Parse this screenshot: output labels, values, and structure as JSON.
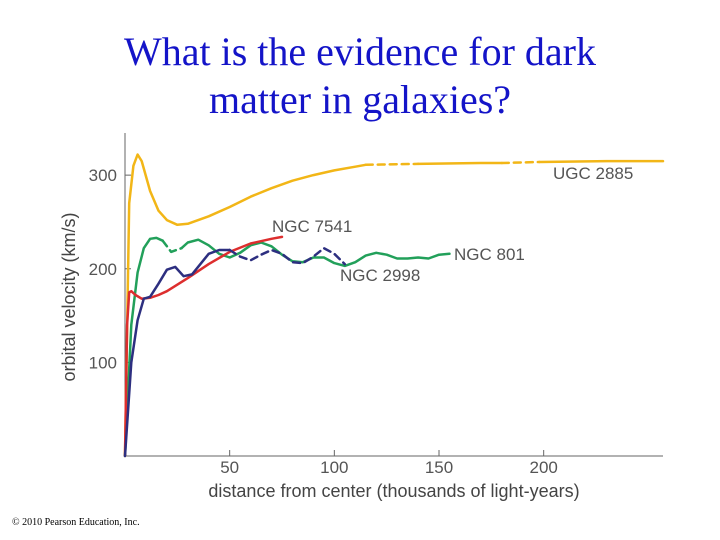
{
  "slide": {
    "title_line1": "What is the evidence for dark",
    "title_line2": "matter in galaxies?",
    "copyright": "© 2010 Pearson Education, Inc."
  },
  "chart_data": {
    "type": "line",
    "title": "",
    "xlabel": "distance from center (thousands of light-years)",
    "ylabel": "orbital velocity (km/s)",
    "xlim": [
      0,
      257
    ],
    "ylim": [
      0,
      345
    ],
    "xticks": [
      50,
      100,
      150,
      200
    ],
    "yticks": [
      100,
      200,
      300
    ],
    "grid": false,
    "legend": "labels placed beside each curve",
    "series": [
      {
        "name": "UGC 2885",
        "color": "#f2b617",
        "x": [
          0,
          2,
          4,
          6,
          8,
          12,
          16,
          20,
          25,
          30,
          40,
          50,
          60,
          70,
          80,
          90,
          100,
          110,
          115
        ],
        "y": [
          0,
          270,
          310,
          322,
          315,
          283,
          262,
          252,
          247,
          248,
          256,
          266,
          277,
          286,
          294,
          300,
          305,
          309,
          311
        ],
        "dashed_x": [
          115,
          140
        ],
        "dashed_y": [
          311,
          312
        ],
        "x2": [
          140,
          170,
          180
        ],
        "y2": [
          312,
          313,
          313
        ],
        "dashed2_x": [
          180,
          198
        ],
        "dashed2_y": [
          313,
          314
        ],
        "x3": [
          198,
          230,
          257
        ],
        "y3": [
          314,
          315,
          315
        ]
      },
      {
        "name": "NGC 801",
        "color": "#22a05a",
        "x": [
          0,
          3,
          6,
          9,
          12,
          15,
          18
        ],
        "y": [
          0,
          140,
          196,
          222,
          232,
          233,
          230
        ],
        "dashed_x": [
          18,
          22,
          27
        ],
        "dashed_y": [
          230,
          218,
          222
        ],
        "x2": [
          27,
          30,
          35,
          40,
          45,
          50,
          55,
          60,
          65,
          70,
          75,
          80,
          85,
          90,
          95,
          100,
          105,
          110,
          115,
          120,
          125,
          130,
          135,
          140,
          145,
          150,
          155
        ],
        "y2": [
          222,
          228,
          231,
          225,
          216,
          212,
          217,
          225,
          228,
          224,
          215,
          208,
          207,
          212,
          212,
          206,
          203,
          207,
          214,
          217,
          215,
          211,
          211,
          212,
          211,
          215,
          216
        ]
      },
      {
        "name": "NGC 7541",
        "color": "#dd2e2e",
        "x": [
          0,
          1,
          2,
          3,
          5,
          8,
          12,
          16,
          20,
          30,
          40,
          50,
          60,
          70,
          75
        ],
        "y": [
          0,
          140,
          175,
          176,
          172,
          168,
          169,
          172,
          176,
          190,
          205,
          218,
          227,
          232,
          234
        ]
      },
      {
        "name": "NGC 2998",
        "color": "#2d2f80",
        "x": [
          0,
          3,
          6,
          9,
          12,
          16,
          20,
          24,
          28,
          32,
          36,
          40,
          45,
          50
        ],
        "y": [
          0,
          100,
          145,
          168,
          170,
          184,
          199,
          202,
          192,
          194,
          205,
          216,
          220,
          220
        ],
        "dashed_x": [
          50,
          55,
          60,
          65,
          70,
          75,
          80,
          85,
          90,
          95,
          100,
          105
        ],
        "dashed_y": [
          220,
          213,
          209,
          215,
          220,
          216,
          207,
          206,
          213,
          222,
          216,
          205
        ]
      }
    ],
    "label_texts": [
      "UGC 2885",
      "NGC 7541",
      "NGC 801",
      "NGC 2998"
    ]
  }
}
